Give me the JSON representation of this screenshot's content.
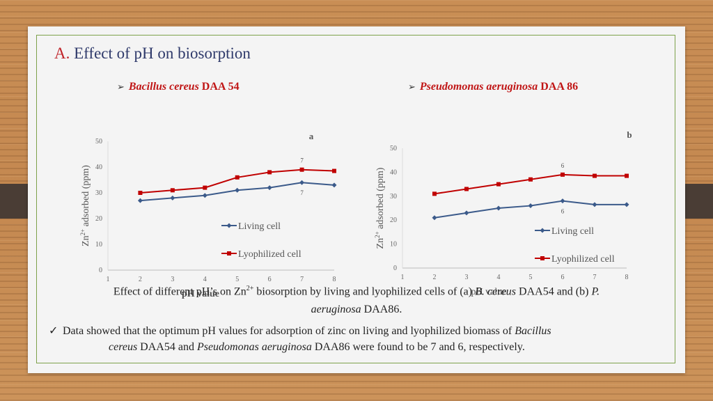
{
  "slide": {
    "title_marker": "A.",
    "title": "Effect of pH on biosorption",
    "subhead_left_italic": "Bacillus cereus",
    "subhead_left_rest": "DAA 54",
    "subhead_right_italic": "Pseudomonas aeruginosa",
    "subhead_right_rest": "DAA 86",
    "caption": {
      "p1": "Effect of different pH’s on Zn",
      "sup": "2+",
      "p2": " biosorption by living and lyophilized cells of (a) ",
      "i1": "B. cereus",
      "p3": " DAA54 and (b) ",
      "i2": "P.",
      "i3": "aeruginosa",
      "p4": " DAA86."
    },
    "bullet": {
      "p1": "Data showed that the optimum pH values for adsorption of zinc on living and lyophilized biomass of ",
      "i1": "Bacillus",
      "i2": "cereus",
      "p2": " DAA54 and ",
      "i3": "Pseudomonas aeruginosa",
      "p3": " DAA86 were found to be 7 and 6, respectively."
    },
    "colors": {
      "living": "#3b5a8a",
      "lyophilized": "#c00000",
      "frame": "#7da14a"
    }
  },
  "chart_data": [
    {
      "type": "line",
      "panel_label": "a",
      "x": [
        1,
        2,
        3,
        4,
        5,
        6,
        7,
        8
      ],
      "ylim": [
        0,
        50
      ],
      "yticks": [
        0,
        10,
        20,
        30,
        40,
        50
      ],
      "ylabel_pre": "Zn",
      "ylabel_sup": "2+",
      "ylabel_post": " adsorbed (ppm)",
      "xlabel": "pH value",
      "series": [
        {
          "name": "Living cell",
          "x": [
            2,
            3,
            4,
            5,
            6,
            7,
            8
          ],
          "values": [
            27,
            28,
            29,
            31,
            32,
            34,
            33
          ],
          "data_labels": {
            "7": "7"
          }
        },
        {
          "name": "Lyophilized cell",
          "x": [
            2,
            3,
            4,
            5,
            6,
            7,
            8
          ],
          "values": [
            30,
            31,
            32,
            36,
            38,
            39,
            38.5
          ],
          "data_labels": {
            "7": "7"
          }
        }
      ]
    },
    {
      "type": "line",
      "panel_label": "b",
      "x": [
        1,
        2,
        3,
        4,
        5,
        6,
        7,
        8
      ],
      "ylim": [
        0,
        50
      ],
      "yticks": [
        0,
        10,
        20,
        30,
        40,
        50
      ],
      "ylabel_pre": "Zn",
      "ylabel_sup": "2+",
      "ylabel_post": " adsorbed (ppm)",
      "xlabel": "pH value",
      "series": [
        {
          "name": "Living cell",
          "x": [
            2,
            3,
            4,
            5,
            6,
            7,
            8
          ],
          "values": [
            21,
            23,
            25,
            26,
            28,
            26.5,
            26.5
          ],
          "data_labels": {
            "6": "6"
          }
        },
        {
          "name": "Lyophilized cell",
          "x": [
            2,
            3,
            4,
            5,
            6,
            7,
            8
          ],
          "values": [
            31,
            33,
            35,
            37,
            39,
            38.5,
            38.5
          ],
          "data_labels": {
            "6": "6"
          }
        }
      ]
    }
  ]
}
